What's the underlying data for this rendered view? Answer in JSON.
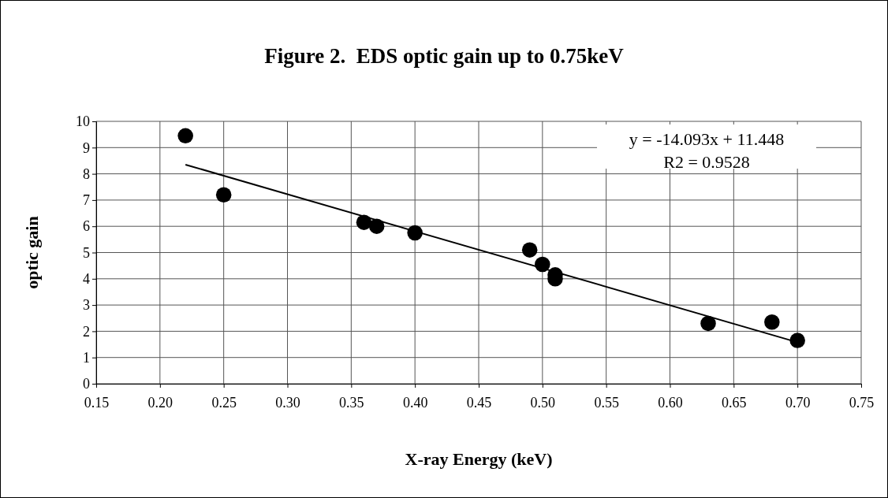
{
  "chart_data": {
    "type": "scatter",
    "title": "Figure 2.  EDS optic gain up to 0.75keV",
    "xlabel": "X-ray Energy (keV)",
    "ylabel": "optic gain",
    "xlim": [
      0.15,
      0.75
    ],
    "xticks": [
      {
        "value": 0.15,
        "label": "0.15"
      },
      {
        "value": 0.2,
        "label": "0.20"
      },
      {
        "value": 0.25,
        "label": "0.25"
      },
      {
        "value": 0.3,
        "label": "0.30"
      },
      {
        "value": 0.35,
        "label": "0.35"
      },
      {
        "value": 0.4,
        "label": "0.40"
      },
      {
        "value": 0.45,
        "label": "0.45"
      },
      {
        "value": 0.5,
        "label": "0.50"
      },
      {
        "value": 0.55,
        "label": "0.55"
      },
      {
        "value": 0.6,
        "label": "0.60"
      },
      {
        "value": 0.65,
        "label": "0.65"
      },
      {
        "value": 0.7,
        "label": "0.70"
      },
      {
        "value": 0.75,
        "label": "0.75"
      }
    ],
    "ylim": [
      0,
      10
    ],
    "yticks": [
      0,
      1,
      2,
      3,
      4,
      5,
      6,
      7,
      8,
      9,
      10
    ],
    "grid": true,
    "marker": "circle",
    "series": [
      {
        "color": "#000000",
        "x": [
          0.22,
          0.25,
          0.36,
          0.37,
          0.4,
          0.49,
          0.5,
          0.51,
          0.51,
          0.63,
          0.68,
          0.7
        ],
        "values": [
          9.45,
          7.2,
          6.15,
          6.0,
          5.75,
          5.1,
          4.55,
          4.15,
          4.0,
          2.3,
          2.35,
          1.65
        ]
      },
      {
        "type": "line",
        "marker": "none",
        "color": "#000000",
        "x": [
          0.22,
          0.7
        ],
        "values": [
          8.35,
          1.58
        ]
      }
    ],
    "annotations": [
      "y = -14.093x + 11.448",
      "R2 = 0.9528"
    ]
  }
}
